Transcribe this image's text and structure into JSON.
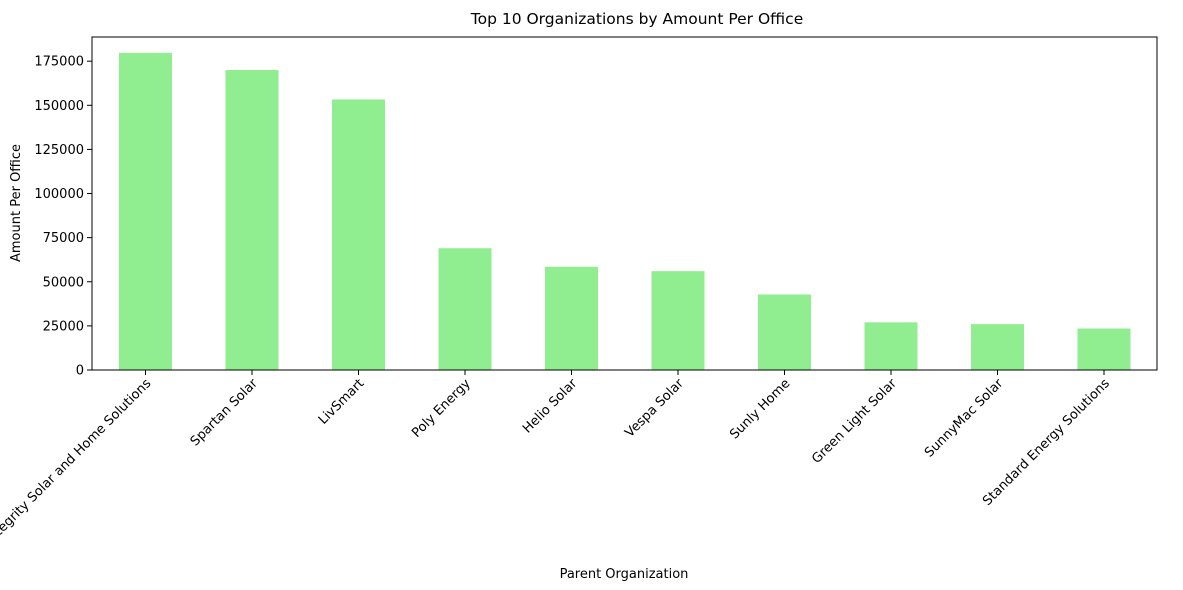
{
  "chart_data": {
    "type": "bar",
    "title": "Top 10 Organizations by Amount Per Office",
    "xlabel": "Parent Organization",
    "ylabel": "Amount Per Office",
    "categories": [
      "Integrity Solar and Home Solutions",
      "Spartan Solar",
      "LivSmart",
      "Poly Energy",
      "Helio Solar",
      "Vespa Solar",
      "Sunly Home",
      "Green Light Solar",
      "SunnyMac Solar",
      "Standard Energy Solutions"
    ],
    "values": [
      179700,
      170000,
      153300,
      69000,
      58500,
      56000,
      42800,
      27000,
      26000,
      23500
    ],
    "ylim": [
      0,
      188700
    ],
    "yticks": [
      0,
      25000,
      50000,
      75000,
      100000,
      125000,
      150000,
      175000
    ],
    "ytick_labels": [
      "0",
      "25000",
      "50000",
      "75000",
      "100000",
      "125000",
      "150000",
      "175000"
    ],
    "bar_color": "#90ee90",
    "grid": false,
    "legend": false
  }
}
